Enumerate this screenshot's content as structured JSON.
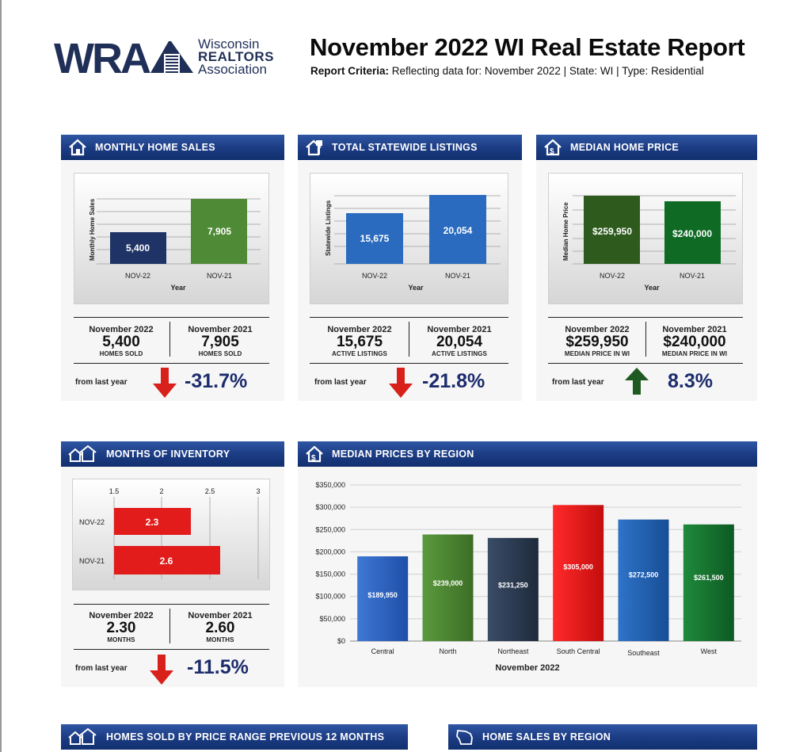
{
  "header": {
    "logo": {
      "mark": "WRA",
      "line1": "Wisconsin",
      "line2": "REALTORS",
      "line3": "Association"
    },
    "title": "November 2022 WI Real Estate Report",
    "criteria_label": "Report Criteria:",
    "criteria_text": "Reflecting data for: November 2022 | State: WI | Type: Residential"
  },
  "colors": {
    "header_blue": "#1b3b82",
    "navy_bar": "#1f3366",
    "green_bar": "#4f8a36",
    "blue_bar": "#2a6bbf",
    "dark_green": "#2e5a1e",
    "red": "#e21b1b",
    "change_text": "#1c2c6c"
  },
  "panels": {
    "monthly_sales": {
      "title": "MONTHLY HOME SALES",
      "icon": "house-icon",
      "chart_data": {
        "type": "bar",
        "categories": [
          "NOV-22",
          "NOV-21"
        ],
        "values": [
          5400,
          7905
        ],
        "value_labels": [
          "5,400",
          "7,905"
        ],
        "xlabel": "Year",
        "ylabel": "Monthly Home Sales",
        "ylim": [
          0,
          9000
        ]
      },
      "left": {
        "label": "November 2022",
        "value": "5,400",
        "unit": "HOMES SOLD"
      },
      "right": {
        "label": "November 2021",
        "value": "7,905",
        "unit": "HOMES SOLD"
      },
      "from_label": "from last year",
      "change": "-31.7%",
      "direction": "down"
    },
    "listings": {
      "title": "TOTAL STATEWIDE LISTINGS",
      "icon": "listing-sign-icon",
      "chart_data": {
        "type": "bar",
        "categories": [
          "NOV-22",
          "NOV-21"
        ],
        "values": [
          15675,
          20054
        ],
        "value_labels": [
          "15,675",
          "20,054"
        ],
        "xlabel": "Year",
        "ylabel": "Statewide Listings",
        "ylim": [
          0,
          23000
        ]
      },
      "left": {
        "label": "November 2022",
        "value": "15,675",
        "unit": "ACTIVE LISTINGS"
      },
      "right": {
        "label": "November 2021",
        "value": "20,054",
        "unit": "ACTIVE LISTINGS"
      },
      "from_label": "from last year",
      "change": "-21.8%",
      "direction": "down"
    },
    "median_price": {
      "title": "MEDIAN HOME PRICE",
      "icon": "money-house-icon",
      "chart_data": {
        "type": "bar",
        "categories": [
          "NOV-22",
          "NOV-21"
        ],
        "values": [
          259950,
          240000
        ],
        "value_labels": [
          "$259,950",
          "$240,000"
        ],
        "xlabel": "Year",
        "ylabel": "Median Home Price",
        "ylim": [
          0,
          290000
        ]
      },
      "left": {
        "label": "November 2022",
        "value": "$259,950",
        "unit": "MEDIAN PRICE IN WI"
      },
      "right": {
        "label": "November 2021",
        "value": "$240,000",
        "unit": "MEDIAN PRICE IN WI"
      },
      "from_label": "from last year",
      "change": "8.3%",
      "direction": "up"
    },
    "inventory": {
      "title": "MONTHS OF INVENTORY",
      "icon": "houses-icon",
      "chart_data": {
        "type": "bar",
        "orientation": "horizontal",
        "categories": [
          "NOV-22",
          "NOV-21"
        ],
        "values": [
          2.3,
          2.6
        ],
        "value_labels": [
          "2.3",
          "2.6"
        ],
        "xlim": [
          1.5,
          3
        ],
        "ticks": [
          "1.5",
          "2",
          "2.5",
          "3"
        ]
      },
      "left": {
        "label": "November 2022",
        "value": "2.30",
        "unit": "MONTHS"
      },
      "right": {
        "label": "November 2021",
        "value": "2.60",
        "unit": "MONTHS"
      },
      "from_label": "from last year",
      "change": "-11.5%",
      "direction": "down"
    },
    "regions": {
      "title": "MEDIAN PRICES BY REGION",
      "icon": "money-house-icon",
      "chart_data": {
        "type": "bar",
        "categories": [
          "Central",
          "North",
          "Northeast",
          "South Central",
          "Southeast",
          "West"
        ],
        "values": [
          189950,
          239000,
          231250,
          305000,
          272500,
          261500
        ],
        "value_labels": [
          "$189,950",
          "$239,000",
          "$231,250",
          "$305,000",
          "$272,500",
          "$261,500"
        ],
        "yticks": [
          "$0",
          "$50,000",
          "$100,000",
          "$150,000",
          "$200,000",
          "$250,000",
          "$300,000",
          "$350,000"
        ],
        "ylim": [
          0,
          350000
        ],
        "xlabel": "November 2022"
      }
    }
  },
  "bottom": {
    "price_range_title": "HOMES SOLD BY PRICE RANGE PREVIOUS 12 MONTHS",
    "sales_region_title": "HOME SALES BY REGION"
  }
}
